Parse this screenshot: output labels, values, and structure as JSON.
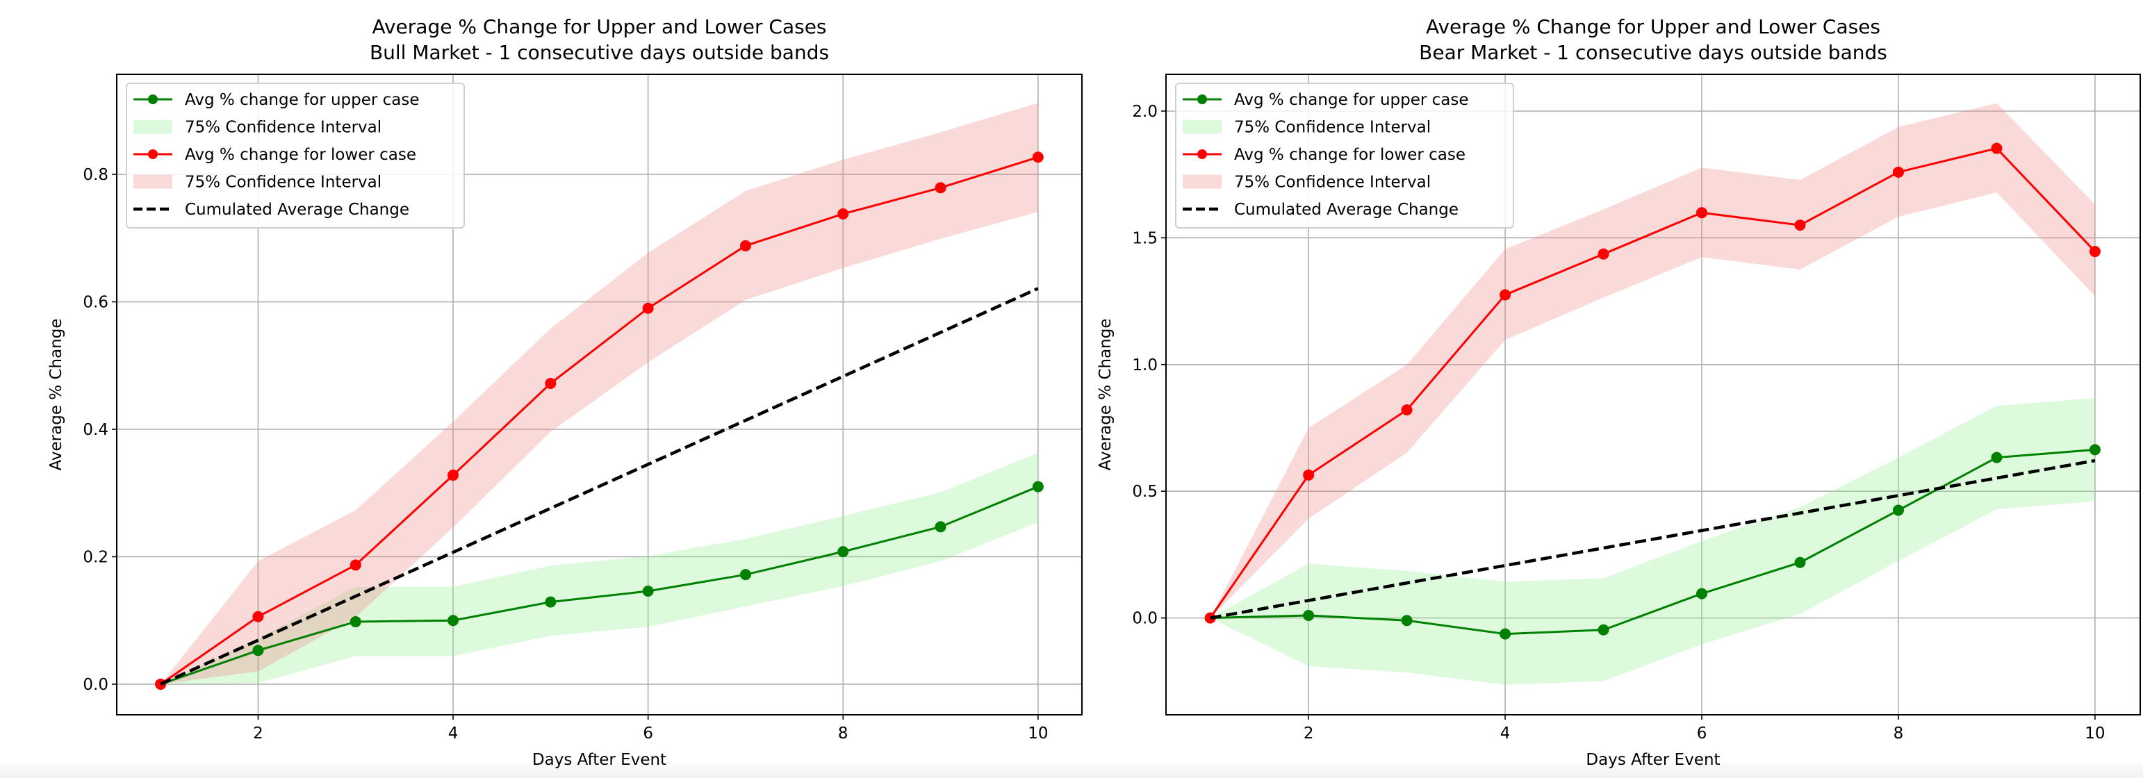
{
  "chart_data": [
    {
      "type": "line",
      "title": "Average % Change for Upper and Lower Cases",
      "subtitle": "Bull Market - 1 consecutive days outside bands",
      "xlabel": "Days After Event",
      "ylabel": "Average % Change",
      "xlim": [
        0.55,
        10.45
      ],
      "ylim": [
        -0.048,
        0.957
      ],
      "xticks": [
        2,
        4,
        6,
        8,
        10
      ],
      "yticks": [
        0.0,
        0.2,
        0.4,
        0.6,
        0.8
      ],
      "ytick_labels": [
        "0.0",
        "0.2",
        "0.4",
        "0.6",
        "0.8"
      ],
      "grid": true,
      "legend_placement": "upper-left",
      "x": [
        1,
        2,
        3,
        4,
        5,
        6,
        7,
        8,
        9,
        10
      ],
      "series": [
        {
          "name": "Avg % change for upper case",
          "color": "#008000",
          "marker": "circle",
          "values": [
            0.0,
            0.053,
            0.098,
            0.1,
            0.129,
            0.146,
            0.172,
            0.208,
            0.247,
            0.31
          ],
          "ci_name": "75% Confidence Interval",
          "ci_color": "#90ee90",
          "ci_upper": [
            0.0,
            0.072,
            0.153,
            0.153,
            0.186,
            0.201,
            0.228,
            0.264,
            0.301,
            0.363
          ],
          "ci_lower": [
            0.0,
            0.002,
            0.044,
            0.044,
            0.076,
            0.09,
            0.122,
            0.154,
            0.193,
            0.254
          ]
        },
        {
          "name": "Avg % change for lower case",
          "color": "#ff0000",
          "marker": "circle",
          "values": [
            0.0,
            0.106,
            0.187,
            0.328,
            0.472,
            0.59,
            0.688,
            0.738,
            0.779,
            0.827
          ],
          "ci_name": "75% Confidence Interval",
          "ci_color": "#f08080",
          "ci_upper": [
            0.0,
            0.193,
            0.273,
            0.412,
            0.558,
            0.677,
            0.774,
            0.823,
            0.866,
            0.912
          ],
          "ci_lower": [
            0.0,
            0.02,
            0.105,
            0.246,
            0.396,
            0.505,
            0.603,
            0.653,
            0.699,
            0.741
          ]
        },
        {
          "name": "Cumulated Average Change",
          "color": "#000000",
          "dash": true,
          "values": [
            0.0,
            0.069,
            0.138,
            0.207,
            0.276,
            0.345,
            0.414,
            0.483,
            0.552,
            0.621
          ]
        }
      ]
    },
    {
      "type": "line",
      "title": "Average % Change for Upper and Lower Cases",
      "subtitle": "Bear Market - 1 consecutive days outside bands",
      "xlabel": "Days After Event",
      "ylabel": "Average % Change",
      "xlim": [
        0.55,
        10.46
      ],
      "ylim": [
        -0.382,
        2.145
      ],
      "xticks": [
        2,
        4,
        6,
        8,
        10
      ],
      "yticks": [
        0.0,
        0.5,
        1.0,
        1.5,
        2.0
      ],
      "ytick_labels": [
        "0.0",
        "0.5",
        "1.0",
        "1.5",
        "2.0"
      ],
      "grid": true,
      "legend_placement": "upper-left",
      "x": [
        1,
        2,
        3,
        4,
        5,
        6,
        7,
        8,
        9,
        10
      ],
      "series": [
        {
          "name": "Avg % change for upper case",
          "color": "#008000",
          "marker": "circle",
          "values": [
            0.0,
            0.01,
            -0.01,
            -0.063,
            -0.047,
            0.096,
            0.219,
            0.425,
            0.633,
            0.664
          ],
          "ci_name": "75% Confidence Interval",
          "ci_color": "#90ee90",
          "ci_upper": [
            0.0,
            0.214,
            0.186,
            0.143,
            0.157,
            0.304,
            0.437,
            0.633,
            0.837,
            0.868
          ],
          "ci_lower": [
            0.0,
            -0.19,
            -0.215,
            -0.264,
            -0.249,
            -0.104,
            0.016,
            0.225,
            0.429,
            0.46
          ]
        },
        {
          "name": "Avg % change for lower case",
          "color": "#ff0000",
          "marker": "circle",
          "values": [
            0.0,
            0.564,
            0.821,
            1.275,
            1.436,
            1.599,
            1.55,
            1.759,
            1.853,
            1.446
          ],
          "ci_name": "75% Confidence Interval",
          "ci_color": "#f08080",
          "ci_upper": [
            0.0,
            0.75,
            0.999,
            1.455,
            1.612,
            1.777,
            1.728,
            1.937,
            2.031,
            1.632
          ],
          "ci_lower": [
            0.0,
            0.392,
            0.652,
            1.097,
            1.264,
            1.424,
            1.375,
            1.583,
            1.679,
            1.27
          ]
        },
        {
          "name": "Cumulated Average Change",
          "color": "#000000",
          "dash": true,
          "values": [
            0.0,
            0.069,
            0.138,
            0.207,
            0.276,
            0.345,
            0.414,
            0.483,
            0.552,
            0.621
          ]
        }
      ]
    }
  ]
}
